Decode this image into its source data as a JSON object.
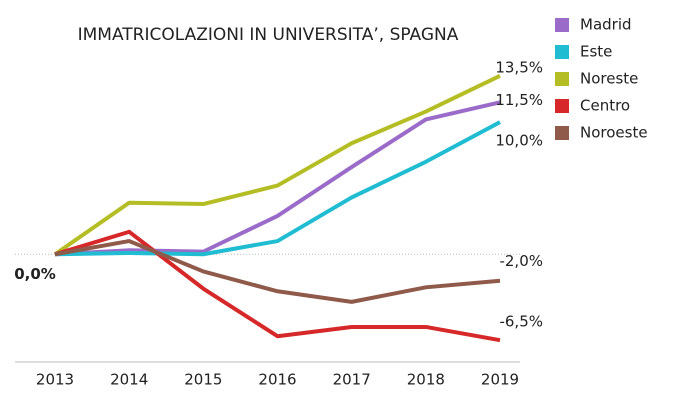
{
  "chart_data": {
    "type": "line",
    "title": "IMMATRICOLAZIONI IN UNIVERSITA’, SPAGNA",
    "categories": [
      "2013",
      "2014",
      "2015",
      "2016",
      "2017",
      "2018",
      "2019"
    ],
    "series": [
      {
        "name": "Madrid",
        "color": "#9b6bc9",
        "values": [
          0,
          0.3,
          0.2,
          2.9,
          6.6,
          10.2,
          11.5
        ],
        "value_labels": [
          "0,0%",
          null,
          null,
          null,
          null,
          null,
          "11,5%"
        ]
      },
      {
        "name": "Este",
        "color": "#1fbcd2",
        "values": [
          0,
          0.1,
          0,
          1.0,
          4.3,
          7.0,
          10.0
        ],
        "value_labels": [
          null,
          null,
          null,
          null,
          null,
          null,
          "10,0%"
        ]
      },
      {
        "name": "Noreste",
        "color": "#b5bd25",
        "values": [
          0,
          3.9,
          3.8,
          5.2,
          8.4,
          10.8,
          13.5
        ],
        "value_labels": [
          null,
          null,
          null,
          null,
          null,
          null,
          "13,5%"
        ]
      },
      {
        "name": "Centro",
        "color": "#d62828",
        "values": [
          0,
          1.7,
          -2.6,
          -6.2,
          -5.5,
          -5.5,
          -6.5
        ],
        "value_labels": [
          null,
          null,
          null,
          null,
          null,
          null,
          "-6,5%"
        ]
      },
      {
        "name": "Noroeste",
        "color": "#8f5a4a",
        "values": [
          0,
          1.0,
          -1.3,
          -2.8,
          -3.6,
          -2.5,
          -2.0
        ],
        "value_labels": [
          null,
          null,
          null,
          null,
          null,
          null,
          "-2,0%"
        ]
      }
    ],
    "ylim": [
      -8,
      14.7
    ],
    "reference_line": 0,
    "legend": "right"
  }
}
